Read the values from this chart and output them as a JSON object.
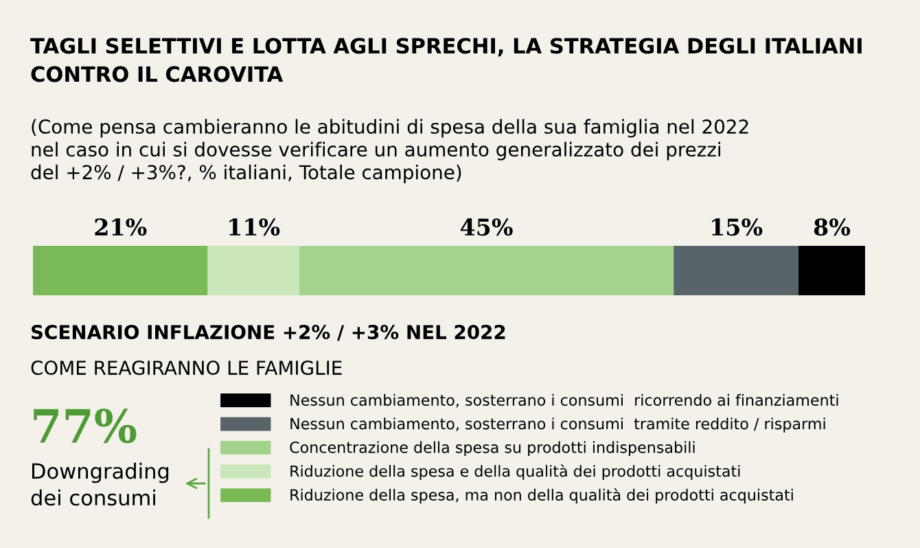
{
  "chart_data": {
    "type": "bar",
    "orientation": "horizontal",
    "stacked": true,
    "xlim": [
      0,
      100
    ],
    "tick_labels": false,
    "legend": "bottom",
    "title": "TAGLI SELETTIVI E LOTTA AGLI SPRECHI, LA STRATEGIA DEGLI ITALIANI\nCONTRO IL CAROVITA",
    "subtitle": "(Come pensa cambieranno le abitudini di spesa della sua famiglia nel 2022\nnel caso in cui si dovesse verificare un aumento generalizzato dei prezzi\ndel +2% / +3%?, % italiani, Totale campione)",
    "categories": [
      null
    ],
    "series": [
      {
        "name": "Riduzione della spesa, ma non della qualità dei prodotti acquistati",
        "color": "#79b956",
        "values": [
          21
        ],
        "value_labels": [
          "21%"
        ]
      },
      {
        "name": "Riduzione della spesa e della qualità dei prodotti acquistati",
        "color": "#cbe6bb",
        "values": [
          11
        ],
        "value_labels": [
          "11%"
        ]
      },
      {
        "name": "Concentrazione della spesa su prodotti indispensabili",
        "color": "#a4d38b",
        "values": [
          45
        ],
        "value_labels": [
          "45%"
        ]
      },
      {
        "name": "Nessun cambiamento, sosterrano i consumi  tramite reddito / risparmi",
        "color": "#59636a",
        "values": [
          15
        ],
        "value_labels": [
          "15%"
        ]
      },
      {
        "name": "Nessun cambiamento, sosterrano i consumi  ricorrendo ai finanziamenti",
        "color": "#000000",
        "values": [
          8
        ],
        "value_labels": [
          "8%"
        ]
      }
    ],
    "annotations": [
      "SCENARIO INFLAZIONE +2% / +3% NEL 2022",
      "COME REAGIRANNO LE FAMIGLIE",
      "77%",
      "Downgrading\ndei consumi"
    ]
  }
}
